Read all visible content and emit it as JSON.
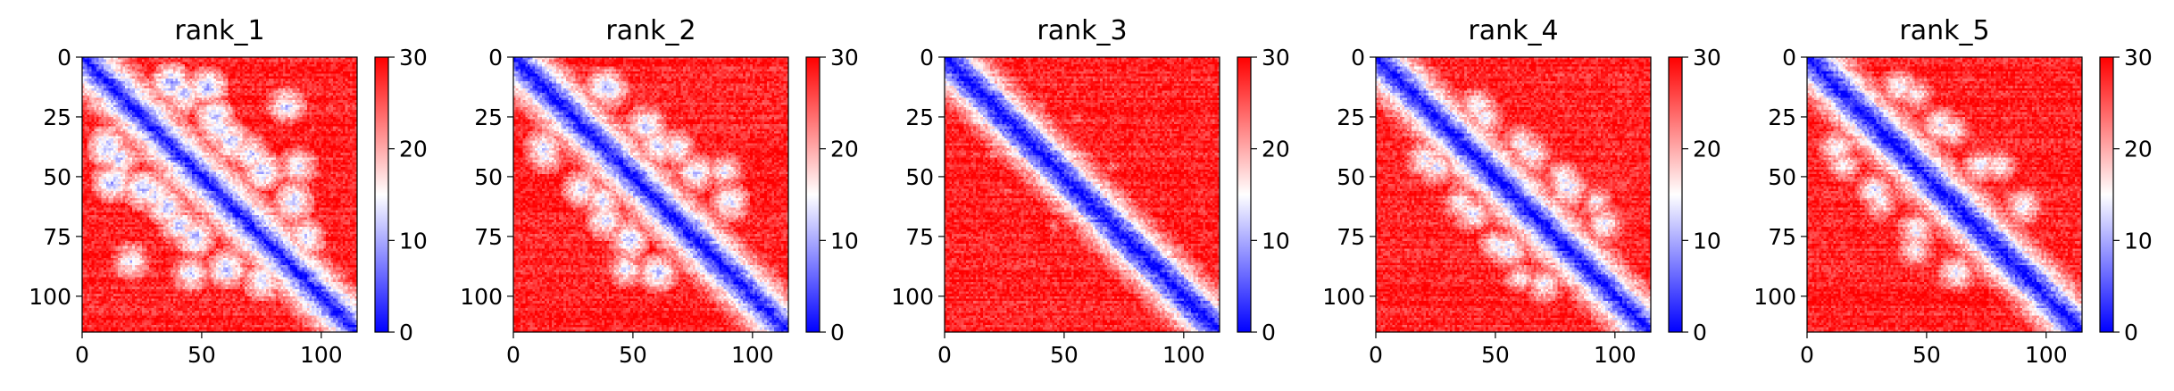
{
  "chart_data": [
    {
      "type": "heatmap",
      "title": "rank_1",
      "xlabel": "",
      "ylabel": "",
      "n": 115,
      "xlim": [
        0,
        115
      ],
      "ylim": [
        115,
        0
      ],
      "xticks": [
        0,
        50,
        100
      ],
      "yticks": [
        0,
        25,
        50,
        75,
        100
      ],
      "colorbar": {
        "range": [
          0,
          30
        ],
        "ticks": [
          0,
          10,
          20,
          30
        ],
        "colors": [
          "#0000ff",
          "#ffffff",
          "#ff0000"
        ]
      },
      "diagonal_band": [
        0,
        14
      ],
      "contact_blobs": [
        {
          "i": 37,
          "j": 10,
          "v": 9
        },
        {
          "i": 52,
          "j": 12,
          "v": 10
        },
        {
          "i": 55,
          "j": 25,
          "v": 10
        },
        {
          "i": 62,
          "j": 35,
          "v": 10
        },
        {
          "i": 75,
          "j": 47,
          "v": 10
        },
        {
          "i": 88,
          "j": 60,
          "v": 10
        },
        {
          "i": 93,
          "j": 75,
          "v": 11
        },
        {
          "i": 15,
          "j": 42,
          "v": 11
        },
        {
          "i": 30,
          "j": 57,
          "v": 11
        },
        {
          "i": 40,
          "j": 70,
          "v": 11
        },
        {
          "i": 45,
          "j": 90,
          "v": 12
        },
        {
          "i": 20,
          "j": 85,
          "v": 12
        }
      ]
    },
    {
      "type": "heatmap",
      "title": "rank_2",
      "xlabel": "",
      "ylabel": "",
      "n": 115,
      "xlim": [
        0,
        115
      ],
      "ylim": [
        115,
        0
      ],
      "xticks": [
        0,
        50,
        100
      ],
      "yticks": [
        0,
        25,
        50,
        75,
        100
      ],
      "colorbar": {
        "range": [
          0,
          30
        ],
        "ticks": [
          0,
          10,
          20,
          30
        ],
        "colors": [
          "#0000ff",
          "#ffffff",
          "#ff0000"
        ]
      },
      "diagonal_band": [
        0,
        12
      ],
      "contact_blobs": [
        {
          "i": 38,
          "j": 12,
          "v": 11
        },
        {
          "i": 55,
          "j": 28,
          "v": 11
        },
        {
          "i": 60,
          "j": 37,
          "v": 11
        },
        {
          "i": 76,
          "j": 48,
          "v": 11
        },
        {
          "i": 90,
          "j": 60,
          "v": 11
        },
        {
          "i": 13,
          "j": 40,
          "v": 12
        },
        {
          "i": 28,
          "j": 55,
          "v": 12
        },
        {
          "i": 38,
          "j": 68,
          "v": 12
        },
        {
          "i": 47,
          "j": 88,
          "v": 13
        }
      ]
    },
    {
      "type": "heatmap",
      "title": "rank_3",
      "xlabel": "",
      "ylabel": "",
      "n": 115,
      "xlim": [
        0,
        115
      ],
      "ylim": [
        115,
        0
      ],
      "xticks": [
        0,
        50,
        100
      ],
      "yticks": [
        0,
        25,
        50,
        75,
        100
      ],
      "colorbar": {
        "range": [
          0,
          30
        ],
        "ticks": [
          0,
          10,
          20,
          30
        ],
        "colors": [
          "#0000ff",
          "#ffffff",
          "#ff0000"
        ]
      },
      "diagonal_band": [
        0,
        10
      ],
      "contact_blobs": [
        {
          "i": 40,
          "j": 20,
          "v": 22
        },
        {
          "i": 70,
          "j": 45,
          "v": 22
        },
        {
          "i": 90,
          "j": 70,
          "v": 23
        },
        {
          "i": 25,
          "j": 55,
          "v": 23
        }
      ]
    },
    {
      "type": "heatmap",
      "title": "rank_4",
      "xlabel": "",
      "ylabel": "",
      "n": 115,
      "xlim": [
        0,
        115
      ],
      "ylim": [
        115,
        0
      ],
      "xticks": [
        0,
        50,
        100
      ],
      "yticks": [
        0,
        25,
        50,
        75,
        100
      ],
      "colorbar": {
        "range": [
          0,
          30
        ],
        "ticks": [
          0,
          10,
          20,
          30
        ],
        "colors": [
          "#0000ff",
          "#ffffff",
          "#ff0000"
        ]
      },
      "diagonal_band": [
        0,
        12
      ],
      "contact_blobs": [
        {
          "i": 45,
          "j": 25,
          "v": 13
        },
        {
          "i": 65,
          "j": 40,
          "v": 13
        },
        {
          "i": 80,
          "j": 55,
          "v": 12
        },
        {
          "i": 95,
          "j": 70,
          "v": 13
        },
        {
          "i": 20,
          "j": 42,
          "v": 13
        },
        {
          "i": 35,
          "j": 60,
          "v": 14
        },
        {
          "i": 50,
          "j": 78,
          "v": 14
        },
        {
          "i": 60,
          "j": 92,
          "v": 15
        }
      ]
    },
    {
      "type": "heatmap",
      "title": "rank_5",
      "xlabel": "",
      "ylabel": "",
      "n": 115,
      "xlim": [
        0,
        115
      ],
      "ylim": [
        115,
        0
      ],
      "xticks": [
        0,
        50,
        100
      ],
      "yticks": [
        0,
        25,
        50,
        75,
        100
      ],
      "colorbar": {
        "range": [
          0,
          30
        ],
        "ticks": [
          0,
          10,
          20,
          30
        ],
        "colors": [
          "#0000ff",
          "#ffffff",
          "#ff0000"
        ]
      },
      "diagonal_band": [
        0,
        11
      ],
      "contact_blobs": [
        {
          "i": 38,
          "j": 12,
          "v": 13
        },
        {
          "i": 55,
          "j": 28,
          "v": 13
        },
        {
          "i": 72,
          "j": 45,
          "v": 13
        },
        {
          "i": 90,
          "j": 62,
          "v": 13
        },
        {
          "i": 15,
          "j": 45,
          "v": 14
        },
        {
          "i": 30,
          "j": 60,
          "v": 14
        },
        {
          "i": 45,
          "j": 80,
          "v": 14
        }
      ]
    }
  ]
}
